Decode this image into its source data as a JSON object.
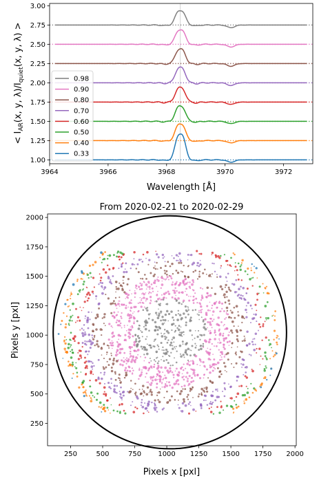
{
  "chart_data": [
    {
      "type": "line",
      "xlabel": "Wavelength [Å]",
      "ylabel_parts": {
        "pre": "< I",
        "sub1": "AR",
        "mid": "(x, y, λ)/I",
        "sub2": "quiet",
        "post": "(x, y, λ) >"
      },
      "xlim": [
        3964,
        3973
      ],
      "ylim": [
        0.95,
        3.03
      ],
      "xticks": [
        "3964",
        "3966",
        "3968",
        "3970",
        "3972"
      ],
      "xtick_values": [
        3964,
        3966,
        3968,
        3970,
        3972
      ],
      "yticks": [
        "1.00",
        "1.25",
        "1.50",
        "1.75",
        "2.00",
        "2.25",
        "2.50",
        "2.75",
        "3.00"
      ],
      "ytick_values": [
        1.0,
        1.25,
        1.5,
        1.75,
        2.0,
        2.25,
        2.5,
        2.75,
        3.0
      ],
      "grid": false,
      "legend": "center-left",
      "vline_x": 3968.47,
      "series": [
        {
          "name": "0.98",
          "color": "#7f7f7f",
          "offset": 1.75,
          "peak": 0.19,
          "dip": 0.035
        },
        {
          "name": "0.90",
          "color": "#e377c2",
          "offset": 1.5,
          "peak": 0.19,
          "dip": 0.035
        },
        {
          "name": "0.80",
          "color": "#8c564b",
          "offset": 1.25,
          "peak": 0.19,
          "dip": 0.035
        },
        {
          "name": "0.70",
          "color": "#9467bd",
          "offset": 1.0,
          "peak": 0.2,
          "dip": 0.035
        },
        {
          "name": "0.60",
          "color": "#d62728",
          "offset": 0.75,
          "peak": 0.19,
          "dip": 0.03
        },
        {
          "name": "0.50",
          "color": "#2ca02c",
          "offset": 0.5,
          "peak": 0.2,
          "dip": 0.03
        },
        {
          "name": "0.40",
          "color": "#ff7f0e",
          "offset": 0.25,
          "peak": 0.22,
          "dip": 0.03
        },
        {
          "name": "0.33",
          "color": "#1f77b4",
          "offset": 0.0,
          "peak": 0.34,
          "dip": 0.03
        }
      ]
    },
    {
      "type": "scatter",
      "title": "From 2020-02-21 to 2020-02-29",
      "xlabel": "Pixels x [pxl]",
      "ylabel": "Pixels y [pxl]",
      "xlim": [
        70,
        2010
      ],
      "ylim": [
        60,
        2030
      ],
      "xticks": [
        "250",
        "500",
        "750",
        "1000",
        "1250",
        "1500",
        "1750",
        "2000"
      ],
      "xtick_values": [
        250,
        500,
        750,
        1000,
        1250,
        1500,
        1750,
        2000
      ],
      "yticks": [
        "250",
        "500",
        "750",
        "1000",
        "1250",
        "1500",
        "1750",
        "2000"
      ],
      "ytick_values": [
        250,
        500,
        750,
        1000,
        1250,
        1500,
        1750,
        2000
      ],
      "grid": false,
      "limb_circle": {
        "cx": 1024,
        "cy": 1024,
        "r": 910
      },
      "series": [
        {
          "name": "0.98",
          "color": "#7f7f7f",
          "mu_range": [
            0.95,
            1.0
          ],
          "points": 260
        },
        {
          "name": "0.90",
          "color": "#e377c2",
          "mu_range": [
            0.85,
            0.95
          ],
          "points": 620
        },
        {
          "name": "0.80",
          "color": "#8c564b",
          "mu_range": [
            0.75,
            0.85
          ],
          "points": 300
        },
        {
          "name": "0.70",
          "color": "#9467bd",
          "mu_range": [
            0.65,
            0.75
          ],
          "points": 280
        },
        {
          "name": "0.60",
          "color": "#d62728",
          "mu_range": [
            0.55,
            0.65
          ],
          "points": 150
        },
        {
          "name": "0.50",
          "color": "#2ca02c",
          "mu_range": [
            0.45,
            0.55
          ],
          "points": 120
        },
        {
          "name": "0.40",
          "color": "#ff7f0e",
          "mu_range": [
            0.36,
            0.45
          ],
          "points": 120
        },
        {
          "name": "0.33",
          "color": "#1f77b4",
          "mu_range": [
            0.3,
            0.36
          ],
          "points": 20
        }
      ]
    }
  ]
}
